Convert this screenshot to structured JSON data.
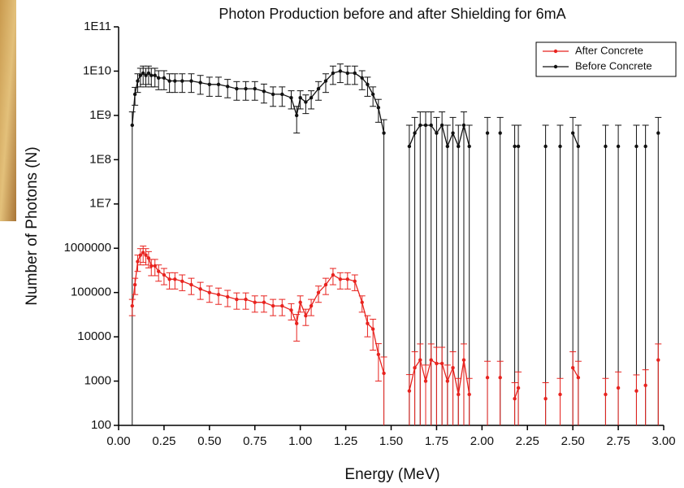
{
  "chart_data": {
    "type": "line",
    "title": "Photon Production before and after Shielding for 6mA",
    "x_label": "Energy (MeV)",
    "y_label": "Number of Photons (N)",
    "yscale": "log",
    "xlim": [
      0,
      3
    ],
    "ylim": [
      100,
      100000000000
    ],
    "xticks": [
      {
        "value": 0,
        "label": "0.00"
      },
      {
        "value": 0.25,
        "label": "0.25"
      },
      {
        "value": 0.5,
        "label": "0.50"
      },
      {
        "value": 0.75,
        "label": "0.75"
      },
      {
        "value": 1,
        "label": "1.00"
      },
      {
        "value": 1.25,
        "label": "1.25"
      },
      {
        "value": 1.5,
        "label": "1.50"
      },
      {
        "value": 1.75,
        "label": "1.75"
      },
      {
        "value": 2,
        "label": "2.00"
      },
      {
        "value": 2.25,
        "label": "2.25"
      },
      {
        "value": 2.5,
        "label": "2.50"
      },
      {
        "value": 2.75,
        "label": "2.75"
      },
      {
        "value": 3,
        "label": "3.00"
      }
    ],
    "yticks": [
      100,
      1000,
      10000,
      100000,
      1000000,
      {
        "value": 10000000,
        "label": "1E7"
      },
      {
        "value": 100000000,
        "label": "1E8"
      },
      {
        "value": 1000000000,
        "label": "1E9"
      },
      {
        "value": 10000000000,
        "label": "1E10"
      },
      {
        "value": 100000000000,
        "label": "1E11"
      }
    ],
    "legend": "upper right",
    "x": [
      0.075,
      0.09,
      0.105,
      0.12,
      0.135,
      0.15,
      0.165,
      0.18,
      0.2,
      0.22,
      0.25,
      0.28,
      0.31,
      0.35,
      0.4,
      0.45,
      0.5,
      0.55,
      0.6,
      0.65,
      0.7,
      0.75,
      0.8,
      0.85,
      0.9,
      0.95,
      0.98,
      1.0,
      1.03,
      1.06,
      1.1,
      1.14,
      1.18,
      1.22,
      1.26,
      1.3,
      1.34,
      1.37,
      1.4,
      1.43,
      1.46,
      1.53,
      1.6,
      1.63,
      1.66,
      1.69,
      1.72,
      1.75,
      1.78,
      1.81,
      1.84,
      1.87,
      1.9,
      1.93,
      1.98,
      2.03,
      2.06,
      2.1,
      2.14,
      2.18,
      2.2,
      2.28,
      2.35,
      2.39,
      2.43,
      2.46,
      2.5,
      2.53,
      2.6,
      2.68,
      2.72,
      2.75,
      2.8,
      2.85,
      2.87,
      2.9,
      2.93,
      2.97
    ],
    "series": [
      {
        "name": "After Concrete",
        "color": "#e8231f",
        "values": [
          50000,
          150000,
          500000,
          700000,
          800000,
          700000,
          600000,
          400000,
          400000,
          300000,
          250000,
          200000,
          200000,
          180000,
          150000,
          120000,
          100000,
          90000,
          80000,
          70000,
          70000,
          60000,
          60000,
          50000,
          50000,
          40000,
          20000,
          60000,
          30000,
          50000,
          100000,
          150000,
          250000,
          200000,
          200000,
          180000,
          60000,
          20000,
          15000,
          4000,
          1500,
          null,
          600,
          2000,
          3000,
          1000,
          3000,
          2500,
          2500,
          1000,
          2000,
          500,
          3000,
          500,
          null,
          1200,
          null,
          1200,
          null,
          400,
          700,
          null,
          400,
          null,
          500,
          null,
          2000,
          1200,
          null,
          500,
          null,
          700,
          null,
          600,
          null,
          800,
          null,
          3000
        ],
        "errors": [
          20000,
          60000,
          200000,
          280000,
          320000,
          280000,
          240000,
          160000,
          160000,
          120000,
          100000,
          80000,
          80000,
          70000,
          60000,
          50000,
          40000,
          36000,
          32000,
          28000,
          28000,
          24000,
          24000,
          20000,
          20000,
          16000,
          12000,
          24000,
          12000,
          20000,
          40000,
          60000,
          100000,
          80000,
          80000,
          70000,
          24000,
          10000,
          10000,
          3000,
          2000,
          null,
          800,
          2600,
          3900,
          1300,
          3900,
          3300,
          3300,
          1300,
          2600,
          650,
          3900,
          650,
          null,
          1600,
          null,
          1600,
          null,
          520,
          910,
          null,
          520,
          null,
          650,
          null,
          2600,
          1600,
          null,
          650,
          null,
          910,
          null,
          780,
          null,
          1000,
          null,
          3900
        ]
      },
      {
        "name": "Before Concrete",
        "color": "#111111",
        "values": [
          600000000,
          3000000000,
          6000000000,
          8000000000,
          9000000000,
          8000000000,
          9000000000,
          8000000000,
          8000000000,
          7000000000,
          7000000000,
          6000000000,
          6000000000,
          6000000000,
          6000000000,
          5500000000,
          5000000000,
          5000000000,
          4500000000,
          4000000000,
          4000000000,
          4000000000,
          3500000000,
          3000000000,
          3000000000,
          2500000000,
          1000000000,
          2500000000,
          2000000000,
          2500000000,
          4000000000,
          6000000000,
          9000000000,
          10000000000,
          9000000000,
          9000000000,
          7000000000,
          5000000000,
          3000000000,
          1500000000,
          400000000,
          null,
          200000000,
          400000000,
          600000000,
          600000000,
          600000000,
          400000000,
          600000000,
          200000000,
          400000000,
          200000000,
          600000000,
          200000000,
          null,
          400000000,
          null,
          400000000,
          null,
          200000000,
          200000000,
          null,
          200000000,
          null,
          200000000,
          null,
          400000000,
          200000000,
          null,
          200000000,
          null,
          200000000,
          null,
          200000000,
          null,
          200000000,
          null,
          400000000
        ],
        "errors": [
          600000000,
          1300000000,
          2700000000,
          3600000000,
          4000000000,
          3600000000,
          4000000000,
          3600000000,
          3600000000,
          3200000000,
          3200000000,
          2700000000,
          2700000000,
          2700000000,
          2700000000,
          2500000000,
          2300000000,
          2300000000,
          2000000000,
          1800000000,
          1800000000,
          1800000000,
          1600000000,
          1400000000,
          1400000000,
          1100000000,
          600000000,
          1100000000,
          900000000,
          1100000000,
          1800000000,
          2700000000,
          4000000000,
          4500000000,
          4000000000,
          4000000000,
          3200000000,
          2300000000,
          1400000000,
          800000000,
          400000000,
          null,
          400000000,
          500000000,
          600000000,
          600000000,
          600000000,
          500000000,
          600000000,
          400000000,
          500000000,
          400000000,
          600000000,
          400000000,
          null,
          500000000,
          null,
          500000000,
          null,
          400000000,
          400000000,
          null,
          400000000,
          null,
          400000000,
          null,
          500000000,
          400000000,
          null,
          400000000,
          null,
          400000000,
          null,
          400000000,
          null,
          400000000,
          null,
          500000000
        ]
      }
    ]
  }
}
